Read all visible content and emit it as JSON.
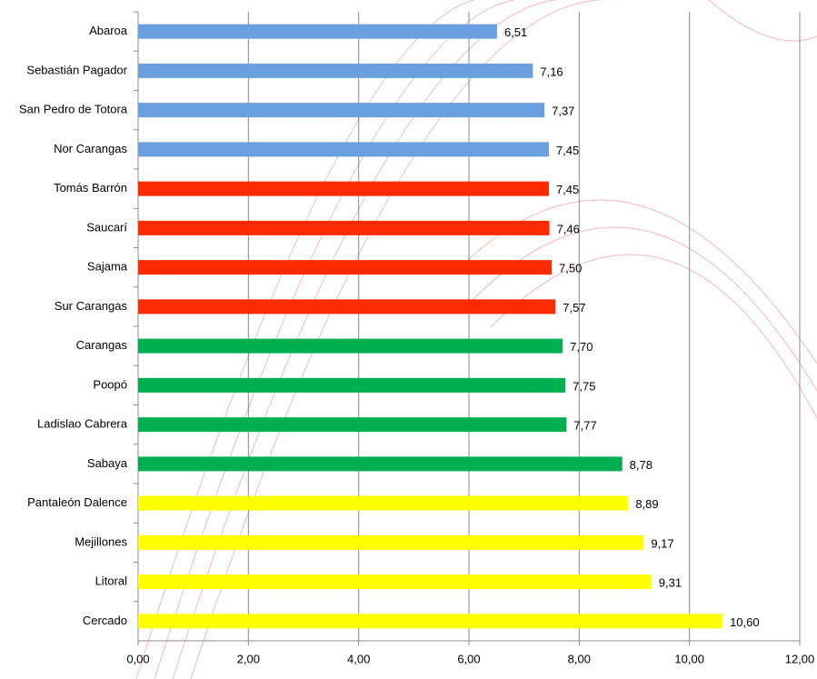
{
  "chart_data": {
    "type": "hbar",
    "categories": [
      "Abaroa",
      "Sebastián Pagador",
      "San Pedro de Totora",
      "Nor Carangas",
      "Tomás Barrón",
      "Saucarí",
      "Sajama",
      "Sur Carangas",
      "Carangas",
      "Poopó",
      "Ladislao Cabrera",
      "Sabaya",
      "Pantaleón Dalence",
      "Mejillones",
      "Litoral",
      "Cercado"
    ],
    "values": [
      6.51,
      7.16,
      7.37,
      7.45,
      7.45,
      7.46,
      7.5,
      7.57,
      7.7,
      7.75,
      7.77,
      8.78,
      8.89,
      9.17,
      9.31,
      10.6
    ],
    "value_labels": [
      "6,51",
      "7,16",
      "7,37",
      "7,45",
      "7,45",
      "7,46",
      "7,50",
      "7,57",
      "7,70",
      "7,75",
      "7,77",
      "8,78",
      "8,89",
      "9,17",
      "9,31",
      "10,60"
    ],
    "colors": [
      "#6a9fe0",
      "#6a9fe0",
      "#6a9fe0",
      "#6a9fe0",
      "#ff2a00",
      "#ff2a00",
      "#ff2a00",
      "#ff2a00",
      "#00b050",
      "#00b050",
      "#00b050",
      "#00b050",
      "#ffff00",
      "#ffff00",
      "#ffff00",
      "#ffff00"
    ],
    "xlim": [
      0,
      12
    ],
    "xticks": [
      {
        "value": 0,
        "label": "0,00"
      },
      {
        "value": 2,
        "label": "2,00"
      },
      {
        "value": 4,
        "label": "4,00"
      },
      {
        "value": 6,
        "label": "6,00"
      },
      {
        "value": 8,
        "label": "8,00"
      },
      {
        "value": 10,
        "label": "10,00"
      },
      {
        "value": 12,
        "label": "12,00"
      }
    ],
    "grid": true
  }
}
